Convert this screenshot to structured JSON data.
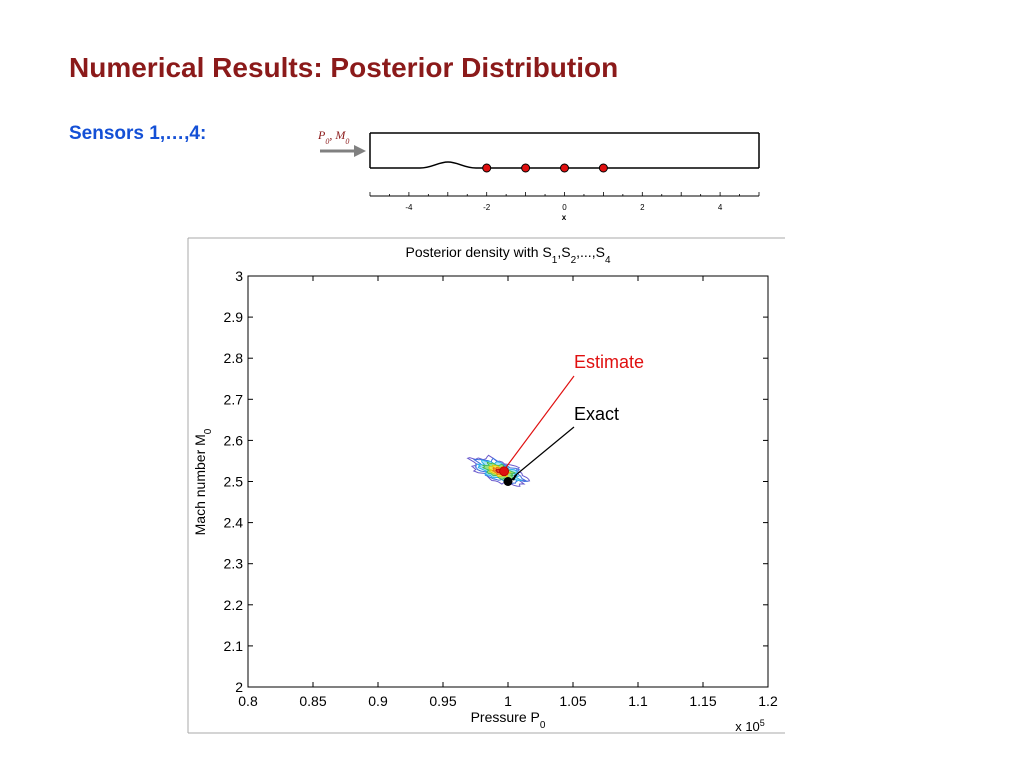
{
  "slide": {
    "title": "Numerical Results: Posterior Distribution",
    "sensors_label": "Sensors 1,…,4:"
  },
  "colors": {
    "title": "#8b1a1a",
    "sensors_label": "#1450d6",
    "sensor_marker": "#e01010",
    "estimate": "#e01010",
    "exact": "#000000",
    "inflow_arrow": "#808080"
  },
  "nozzle_diagram": {
    "inflow_label_P": "P",
    "inflow_label_M": "M",
    "inflow_subscript": "0",
    "inflow_separator": ", ",
    "x_axis_label": "x",
    "x_ticks": [
      -4,
      -2,
      0,
      2,
      4
    ],
    "x_range": [
      -5,
      5
    ],
    "sensor_positions": [
      -2,
      -1,
      0,
      1
    ]
  },
  "chart_data": {
    "type": "contour",
    "title_main": "Posterior density with S",
    "title_subs": [
      "1",
      "2",
      "4"
    ],
    "title_mid": ",S",
    "title_mid2": ",...,S",
    "xlabel_main": "Pressure P",
    "xlabel_sub": "0",
    "ylabel_main": "Mach number M",
    "ylabel_sub": "0",
    "xlim": [
      0.8,
      1.2
    ],
    "ylim": [
      2.0,
      3.0
    ],
    "x_ticks": [
      "0.8",
      "0.85",
      "0.9",
      "0.95",
      "1",
      "1.05",
      "1.1",
      "1.15",
      "1.2"
    ],
    "y_ticks": [
      "2",
      "2.1",
      "2.2",
      "2.3",
      "2.4",
      "2.5",
      "2.6",
      "2.7",
      "2.8",
      "2.9",
      "3"
    ],
    "x_multiplier_base": "x 10",
    "x_multiplier_exp": "5",
    "posterior_mode": {
      "x": 0.99,
      "y": 2.53
    },
    "estimate": {
      "label": "Estimate",
      "x": 0.997,
      "y": 2.525
    },
    "exact": {
      "label": "Exact",
      "x": 1.0,
      "y": 2.5
    }
  }
}
